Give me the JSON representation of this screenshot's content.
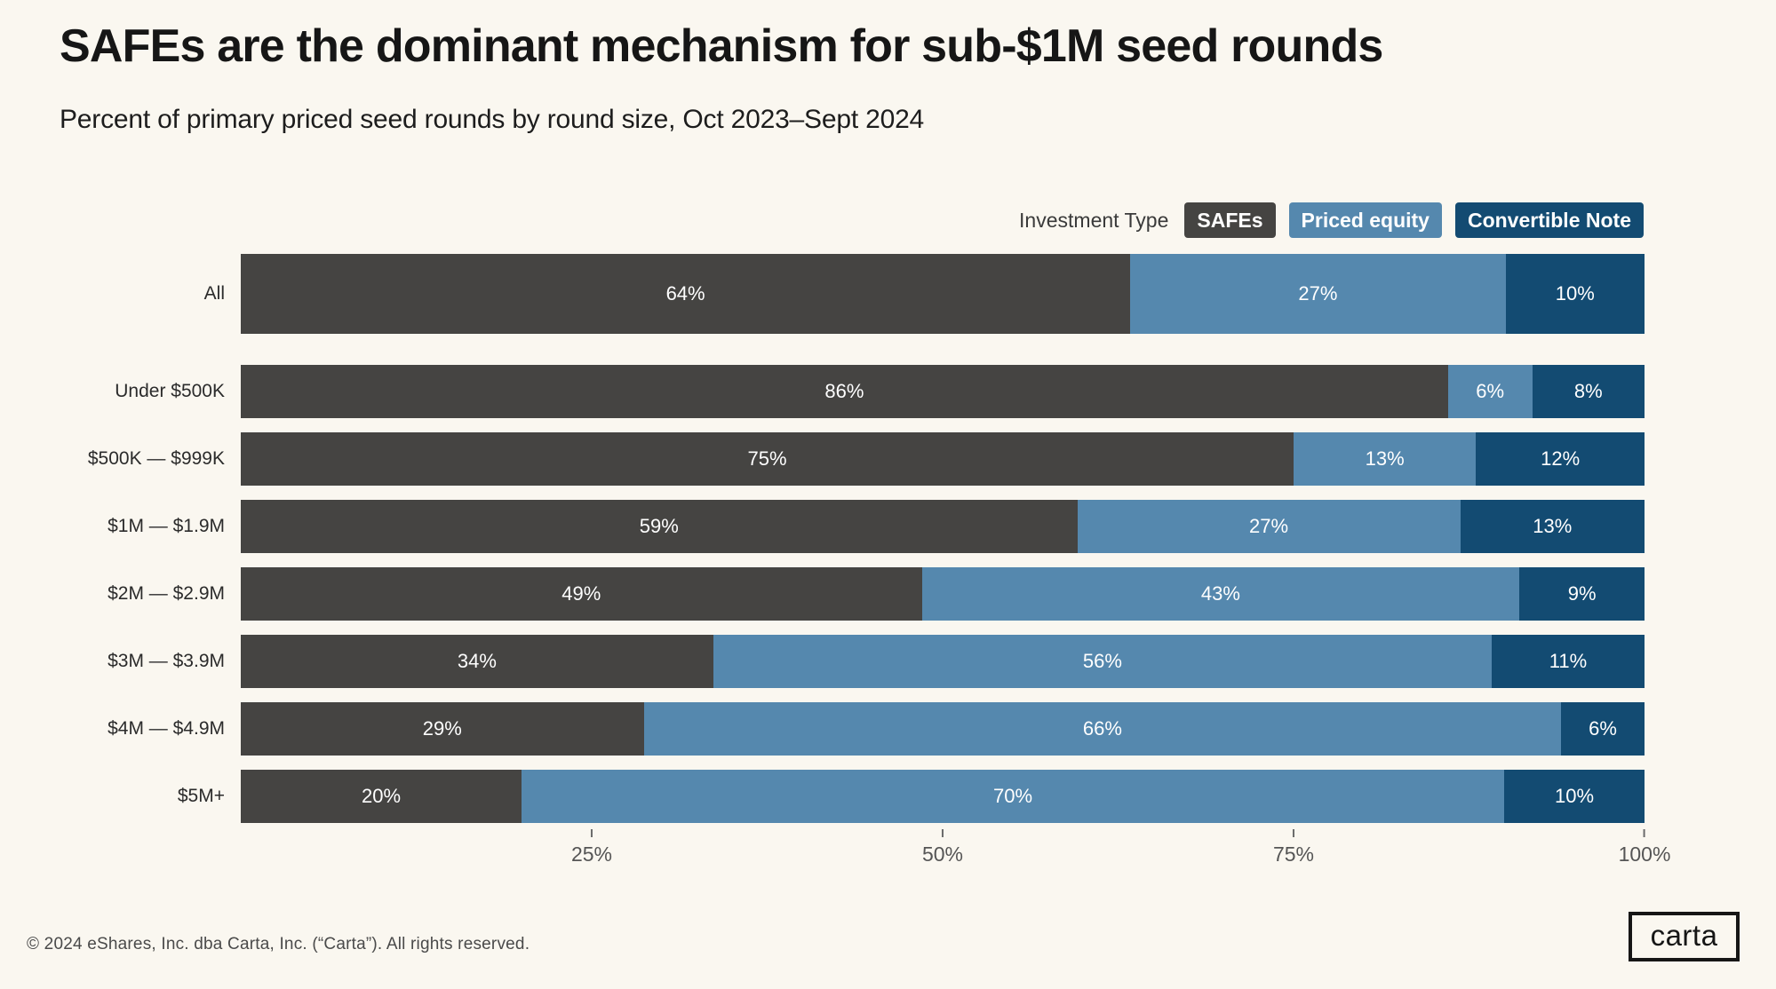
{
  "header": {
    "title": "SAFEs are the dominant mechanism for sub-$1M seed rounds",
    "subtitle": "Percent of primary priced seed rounds by round size, Oct 2023–Sept 2024"
  },
  "legend": {
    "label": "Investment Type",
    "items": [
      {
        "label": "SAFEs",
        "color": "#454442"
      },
      {
        "label": "Priced equity",
        "color": "#5588AE"
      },
      {
        "label": "Convertible Note",
        "color": "#134B72"
      }
    ]
  },
  "chart_data": {
    "type": "bar",
    "orientation": "horizontal",
    "stacked": true,
    "title": "SAFEs are the dominant mechanism for sub-$1M seed rounds",
    "xlabel": "",
    "ylabel": "",
    "xlim": [
      0,
      100
    ],
    "value_suffix": "%",
    "categories": [
      "All",
      "Under $500K",
      "$500K — $999K",
      "$1M — $1.9M",
      "$2M — $2.9M",
      "$3M — $3.9M",
      "$4M — $4.9M",
      "$5M+"
    ],
    "series": [
      {
        "name": "SAFEs",
        "color": "#454442",
        "values": [
          64,
          86,
          75,
          59,
          49,
          34,
          29,
          20
        ]
      },
      {
        "name": "Priced equity",
        "color": "#5588AE",
        "values": [
          27,
          6,
          13,
          27,
          43,
          56,
          66,
          70
        ]
      },
      {
        "name": "Convertible Note",
        "color": "#134B72",
        "values": [
          10,
          8,
          12,
          13,
          9,
          11,
          6,
          10
        ]
      }
    ],
    "x_ticks": [
      {
        "label": "25%",
        "pos": 25
      },
      {
        "label": "50%",
        "pos": 50
      },
      {
        "label": "75%",
        "pos": 75
      },
      {
        "label": "100%",
        "pos": 100
      }
    ],
    "legend_position": "top-right",
    "grid": false
  },
  "footer": {
    "copyright": "© 2024 eShares, Inc. dba Carta, Inc. (“Carta”). All rights reserved.",
    "logo_text": "carta"
  },
  "colors": {
    "background": "#FAF7F0",
    "safes": "#454442",
    "priced_equity": "#5588AE",
    "convertible_note": "#134B72",
    "text_primary": "#161616",
    "text_muted": "#4A4A4A",
    "axis_text": "#555555"
  }
}
